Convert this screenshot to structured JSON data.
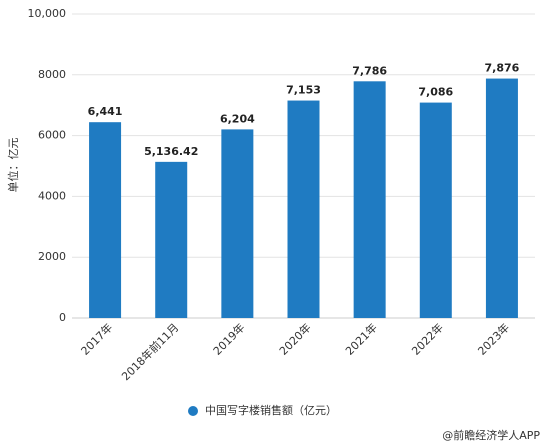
{
  "chart_data": {
    "type": "bar",
    "y_label": "单位：亿元",
    "categories": [
      "2017年",
      "2018年前11月",
      "2019年",
      "2020年",
      "2021年",
      "2022年",
      "2023年"
    ],
    "series": [
      {
        "name": "中国写字楼销售额（亿元）",
        "color": "#1f7bc2",
        "values": [
          6441,
          5136.42,
          6204,
          7153,
          7786,
          7086,
          7876
        ],
        "value_labels": [
          "6,441",
          "5,136.42",
          "6,204",
          "7,153",
          "7,786",
          "7,086",
          "7,876"
        ]
      }
    ],
    "ylim": [
      0,
      10000
    ],
    "yticks": [
      0,
      2000,
      4000,
      6000,
      8000,
      {
        "value": 10000,
        "label": "10,000"
      }
    ],
    "grid": true,
    "legend": "bottom",
    "source": "@前瞻经济学人APP"
  }
}
